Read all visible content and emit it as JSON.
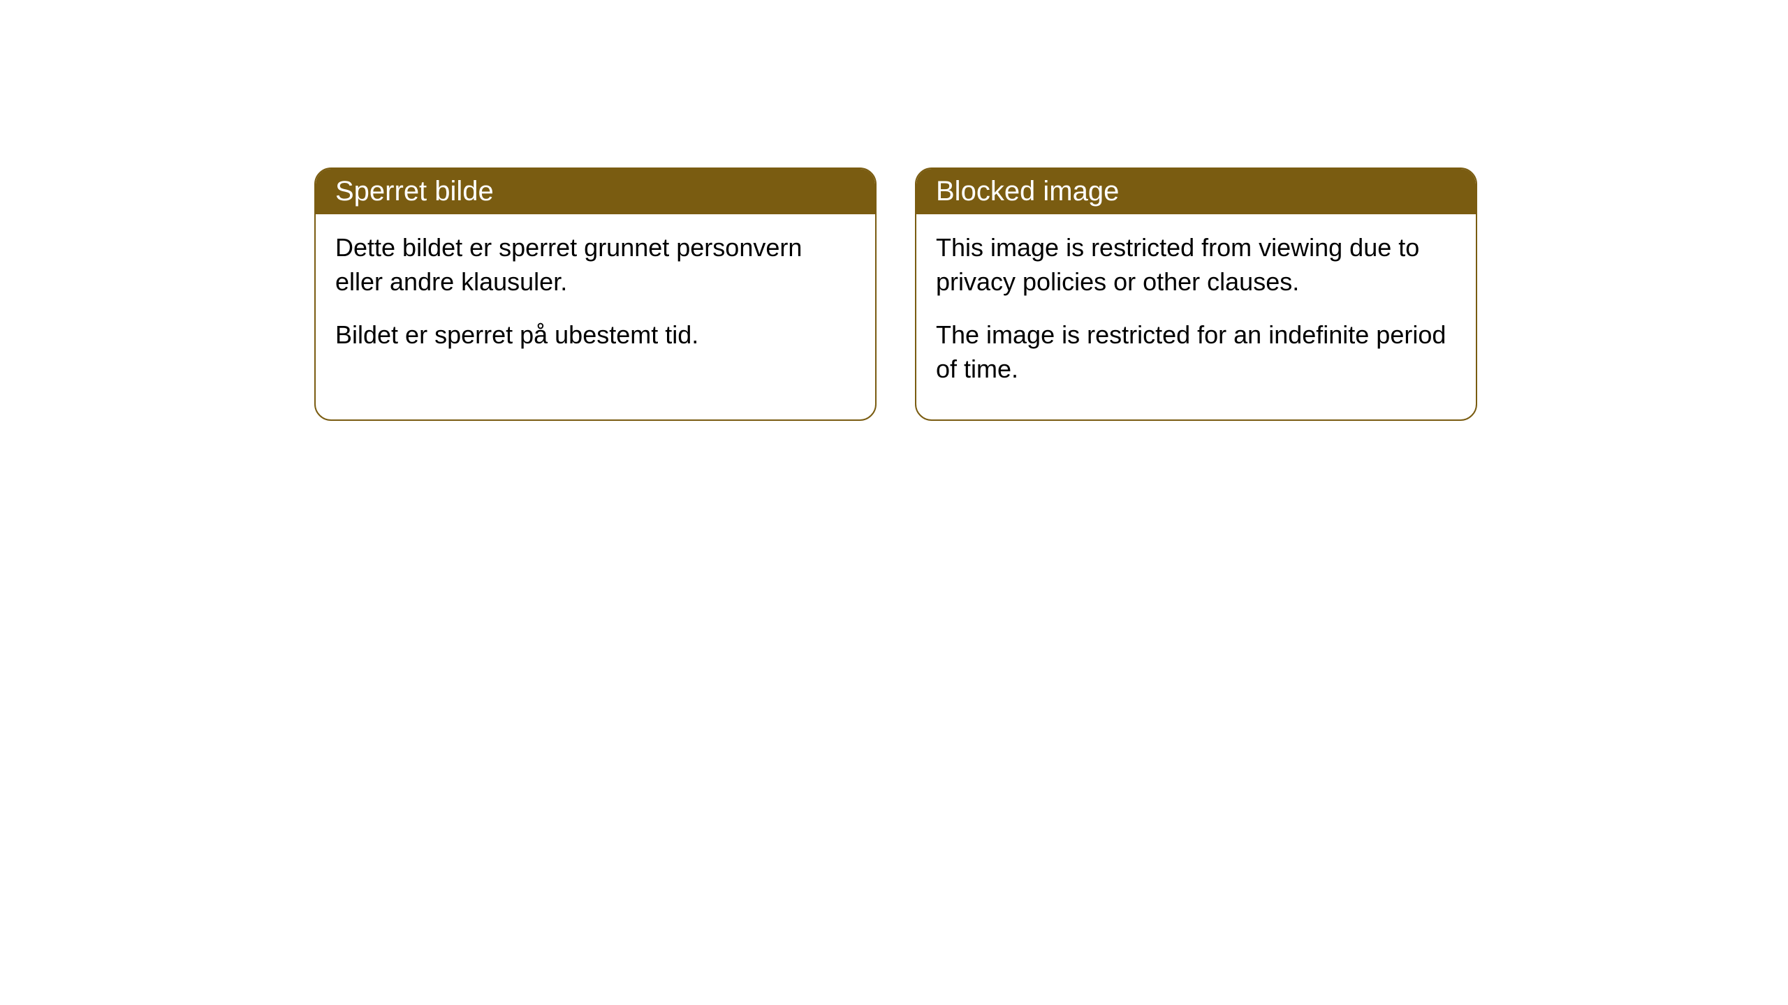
{
  "cards": [
    {
      "title": "Sperret bilde",
      "para1": "Dette bildet er sperret grunnet personvern eller andre klausuler.",
      "para2": "Bildet er sperret på ubestemt tid."
    },
    {
      "title": "Blocked image",
      "para1": "This image is restricted from viewing due to privacy policies or other clauses.",
      "para2": "The image is restricted for an indefinite period of time."
    }
  ],
  "style": {
    "header_bg": "#7a5c11",
    "header_text_color": "#ffffff",
    "border_color": "#7a5c11",
    "body_text_color": "#000000",
    "background_color": "#ffffff",
    "border_radius": 24,
    "header_fontsize": 40,
    "body_fontsize": 36
  }
}
